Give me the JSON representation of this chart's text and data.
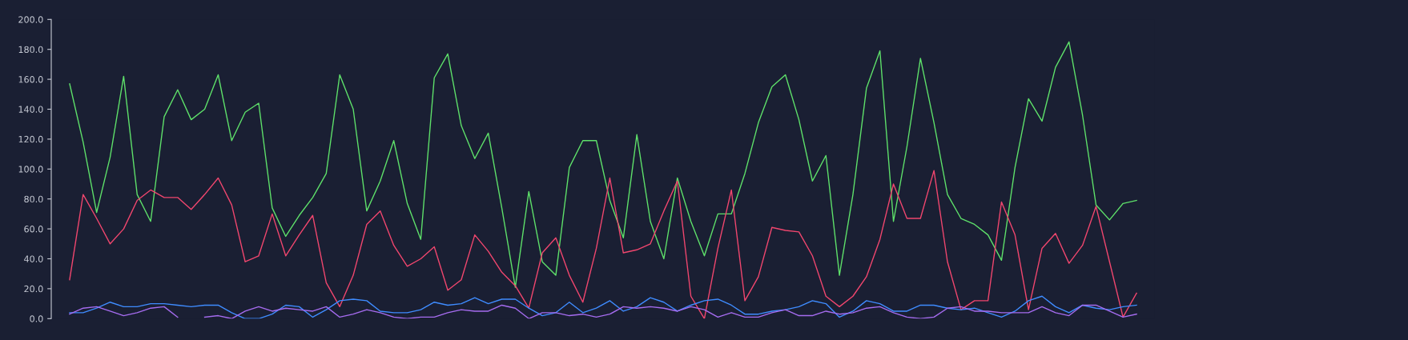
{
  "chart_data": {
    "type": "line",
    "categories": [
      null,
      null,
      null,
      null,
      null,
      null,
      null,
      null,
      null,
      null,
      null,
      null,
      null,
      null,
      null,
      null,
      null,
      null,
      null,
      null,
      null,
      null,
      null,
      null,
      null,
      null,
      null,
      null,
      null,
      null,
      null,
      null,
      null,
      null,
      null,
      null,
      null,
      null,
      null,
      null,
      null,
      null,
      null,
      null,
      null,
      null,
      null,
      null,
      null,
      null,
      null,
      null,
      null,
      null,
      null,
      null,
      null,
      null,
      null,
      null,
      null,
      null,
      null,
      null,
      null,
      null,
      null,
      null,
      null,
      null,
      null,
      null,
      null,
      null,
      null,
      null,
      null,
      null,
      null,
      null
    ],
    "series": [
      {
        "color": "#5ee06a",
        "values": [
          157,
          118,
          71,
          108,
          162,
          83,
          65,
          135,
          153,
          133,
          140,
          163,
          119,
          138,
          144,
          74,
          55,
          69,
          81,
          97,
          163,
          140,
          72,
          92,
          119,
          77,
          53,
          161,
          177,
          129,
          107,
          124,
          74,
          21,
          85,
          38,
          29,
          101,
          119,
          119,
          79,
          54,
          123,
          65,
          40,
          94,
          65,
          42,
          70,
          70,
          97,
          131,
          155,
          163,
          133,
          92,
          109,
          29,
          83,
          154,
          179,
          65,
          115,
          174,
          131,
          83,
          67,
          63,
          56,
          39,
          101,
          147,
          132,
          168,
          185,
          136,
          76,
          66,
          77,
          79
        ]
      },
      {
        "color": "#f0466e",
        "values": [
          26,
          83,
          67,
          50,
          60,
          79,
          86,
          81,
          81,
          73,
          83,
          94,
          76,
          38,
          42,
          70,
          42,
          56,
          69,
          24,
          8,
          29,
          63,
          72,
          49,
          35,
          40,
          48,
          19,
          26,
          56,
          45,
          31,
          22,
          7,
          44,
          54,
          29,
          11,
          47,
          94,
          44,
          46,
          50,
          72,
          92,
          15,
          0,
          47,
          86,
          12,
          28,
          61,
          59,
          58,
          42,
          15,
          8,
          15,
          28,
          53,
          90,
          67,
          67,
          99,
          38,
          6,
          12,
          12,
          78,
          56,
          6,
          47,
          57,
          37,
          49,
          75,
          38,
          1,
          17
        ]
      },
      {
        "color": "#3f8cff",
        "values": [
          4,
          4,
          7,
          11,
          8,
          8,
          10,
          10,
          9,
          8,
          9,
          9,
          4,
          0,
          0,
          3,
          9,
          8,
          1,
          6,
          12,
          13,
          12,
          5,
          4,
          4,
          6,
          11,
          9,
          10,
          14,
          10,
          13,
          13,
          7,
          2,
          4,
          11,
          4,
          7,
          12,
          5,
          8,
          14,
          11,
          5,
          9,
          12,
          13,
          9,
          3,
          3,
          5,
          6,
          8,
          12,
          10,
          1,
          5,
          12,
          10,
          5,
          5,
          9,
          9,
          7,
          6,
          7,
          4,
          1,
          5,
          12,
          15,
          8,
          4,
          9,
          7,
          6,
          8,
          9
        ]
      },
      {
        "color": "#a66cf0",
        "values": [
          3,
          7,
          8,
          5,
          2,
          4,
          7,
          8,
          1,
          null,
          1,
          2,
          0,
          5,
          8,
          5,
          7,
          6,
          5,
          8,
          1,
          3,
          6,
          4,
          1,
          0,
          1,
          1,
          4,
          6,
          5,
          5,
          9,
          7,
          0,
          4,
          4,
          2,
          3,
          1,
          3,
          8,
          7,
          8,
          7,
          5,
          8,
          6,
          1,
          4,
          1,
          1,
          4,
          6,
          2,
          2,
          5,
          3,
          4,
          7,
          8,
          4,
          1,
          0,
          1,
          7,
          8,
          5,
          5,
          4,
          4,
          4,
          8,
          4,
          2,
          9,
          9,
          5,
          1,
          3
        ]
      }
    ],
    "ylim": [
      0,
      200
    ],
    "yticks": [
      {
        "value": 0,
        "label": "0.0"
      },
      {
        "value": 20,
        "label": "20.0"
      },
      {
        "value": 40,
        "label": "40.0"
      },
      {
        "value": 60,
        "label": "60.0"
      },
      {
        "value": 80,
        "label": "80.0"
      },
      {
        "value": 100,
        "label": "100.0"
      },
      {
        "value": 120,
        "label": "120.0"
      },
      {
        "value": 140,
        "label": "140.0"
      },
      {
        "value": 160,
        "label": "160.0"
      },
      {
        "value": 180,
        "label": "180.0"
      },
      {
        "value": 200,
        "label": "200.0"
      }
    ],
    "tick_labels": "y",
    "grid": false,
    "legend": false
  }
}
